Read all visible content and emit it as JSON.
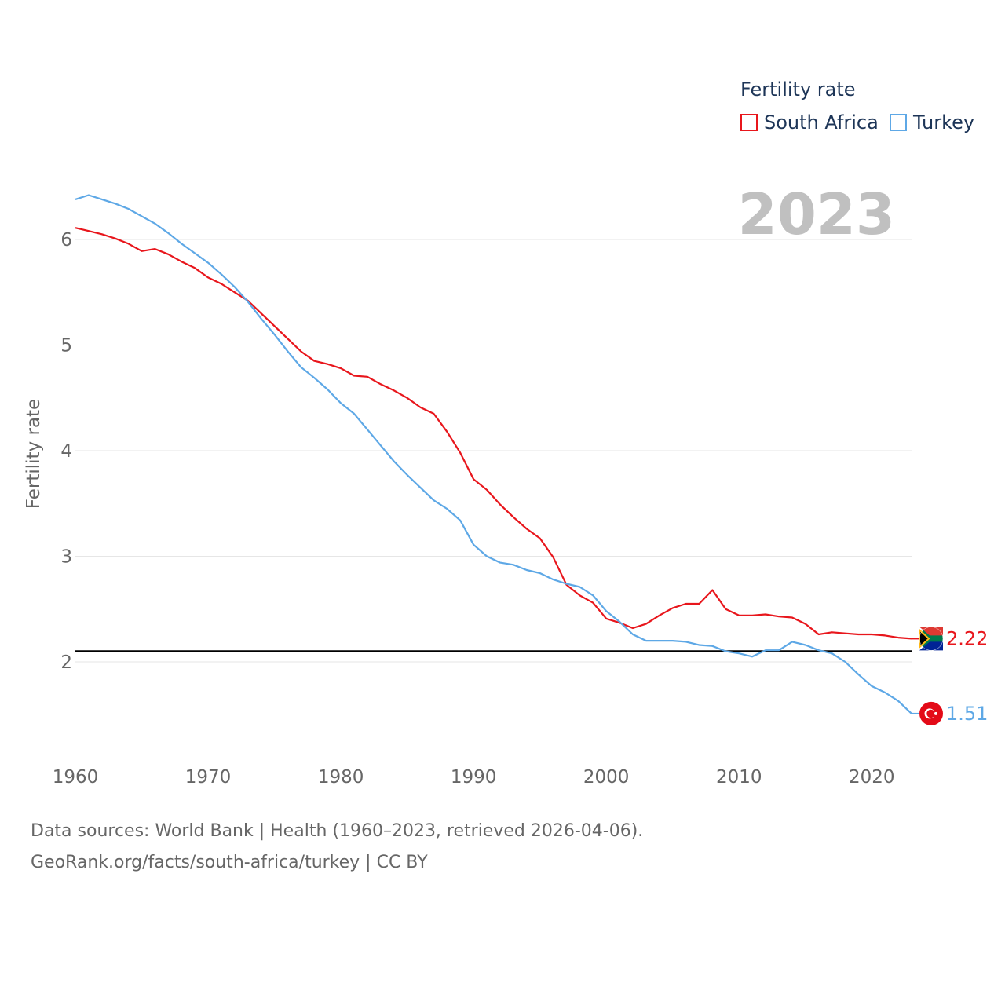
{
  "legend": {
    "title": "Fertility rate",
    "items": [
      {
        "label": "South Africa",
        "color": "#e8161c"
      },
      {
        "label": "Turkey",
        "color": "#5ea8e6"
      }
    ]
  },
  "year_overlay": "2023",
  "footer": {
    "line1": "Data sources: World Bank | Health (1960–2023, retrieved 2026-04-06).",
    "line2": "GeoRank.org/facts/south-africa/turkey | CC BY"
  },
  "chart_data": {
    "type": "line",
    "title": "Fertility rate",
    "xlabel": "",
    "ylabel": "Fertility rate",
    "xlim": [
      1960,
      2023
    ],
    "ylim": [
      1.3,
      6.6
    ],
    "x_ticks": [
      1960,
      1970,
      1980,
      1990,
      2000,
      2010,
      2020
    ],
    "y_ticks": [
      2,
      3,
      4,
      5,
      6
    ],
    "grid": true,
    "reference_line": {
      "y": 2.1,
      "color": "#000000"
    },
    "x": [
      1960,
      1961,
      1962,
      1963,
      1964,
      1965,
      1966,
      1967,
      1968,
      1969,
      1970,
      1971,
      1972,
      1973,
      1974,
      1975,
      1976,
      1977,
      1978,
      1979,
      1980,
      1981,
      1982,
      1983,
      1984,
      1985,
      1986,
      1987,
      1988,
      1989,
      1990,
      1991,
      1992,
      1993,
      1994,
      1995,
      1996,
      1997,
      1998,
      1999,
      2000,
      2001,
      2002,
      2003,
      2004,
      2005,
      2006,
      2007,
      2008,
      2009,
      2010,
      2011,
      2012,
      2013,
      2014,
      2015,
      2016,
      2017,
      2018,
      2019,
      2020,
      2021,
      2022,
      2023
    ],
    "series": [
      {
        "name": "South Africa",
        "color": "#e8161c",
        "end_label": "2.22",
        "values": [
          6.11,
          6.08,
          6.05,
          6.01,
          5.96,
          5.89,
          5.91,
          5.86,
          5.79,
          5.73,
          5.64,
          5.58,
          5.5,
          5.42,
          5.3,
          5.18,
          5.06,
          4.94,
          4.85,
          4.82,
          4.78,
          4.71,
          4.7,
          4.63,
          4.57,
          4.5,
          4.41,
          4.35,
          4.18,
          3.98,
          3.73,
          3.63,
          3.49,
          3.37,
          3.26,
          3.17,
          2.99,
          2.73,
          2.63,
          2.56,
          2.41,
          2.37,
          2.32,
          2.36,
          2.44,
          2.51,
          2.55,
          2.55,
          2.68,
          2.5,
          2.44,
          2.44,
          2.45,
          2.43,
          2.42,
          2.36,
          2.26,
          2.28,
          2.27,
          2.26,
          2.26,
          2.25,
          2.23,
          2.22
        ]
      },
      {
        "name": "Turkey",
        "color": "#5ea8e6",
        "end_label": "1.51",
        "values": [
          6.38,
          6.42,
          6.38,
          6.34,
          6.29,
          6.22,
          6.15,
          6.06,
          5.96,
          5.87,
          5.78,
          5.67,
          5.55,
          5.41,
          5.25,
          5.1,
          4.94,
          4.79,
          4.69,
          4.58,
          4.45,
          4.35,
          4.2,
          4.05,
          3.9,
          3.77,
          3.65,
          3.53,
          3.45,
          3.34,
          3.11,
          3.0,
          2.94,
          2.92,
          2.87,
          2.84,
          2.78,
          2.74,
          2.71,
          2.63,
          2.48,
          2.38,
          2.26,
          2.2,
          2.2,
          2.2,
          2.19,
          2.16,
          2.15,
          2.1,
          2.08,
          2.05,
          2.11,
          2.11,
          2.19,
          2.16,
          2.11,
          2.08,
          2.0,
          1.88,
          1.77,
          1.71,
          1.63,
          1.51
        ]
      }
    ]
  }
}
